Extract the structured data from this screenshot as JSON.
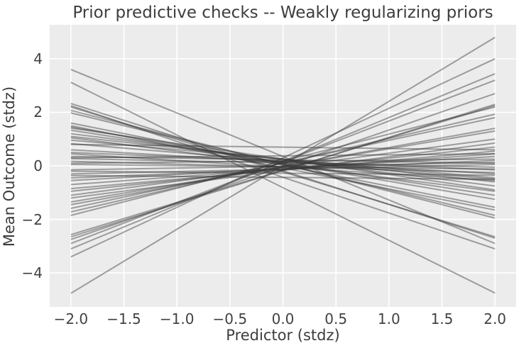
{
  "figure": {
    "title": "Prior predictive checks -- Weakly regularizing priors",
    "xlabel": "Predictor (stdz)",
    "ylabel": "Mean Outcome (stdz)"
  },
  "chart_data": {
    "type": "line",
    "title": "Prior predictive checks -- Weakly regularizing priors",
    "xlabel": "Predictor (stdz)",
    "ylabel": "Mean Outcome (stdz)",
    "xlim": [
      -2.2,
      2.2
    ],
    "ylim": [
      -5.27,
      5.27
    ],
    "grid": true,
    "legend": "none",
    "n_lines": 50,
    "x": [
      -2,
      2
    ],
    "xticks": {
      "values": [
        -2.0,
        -1.5,
        -1.0,
        -0.5,
        0.0,
        0.5,
        1.0,
        1.5,
        2.0
      ],
      "labels": [
        "−2.0",
        "−1.5",
        "−1.0",
        "−0.5",
        "0.0",
        "0.5",
        "1.0",
        "1.5",
        "2.0"
      ]
    },
    "yticks": {
      "values": [
        -4,
        -2,
        0,
        2,
        4
      ],
      "labels": [
        "−4",
        "−2",
        "0",
        "2",
        "4"
      ]
    },
    "series": [
      [
        3.6,
        -2.9
      ],
      [
        3.12,
        -4.75
      ],
      [
        2.33,
        -2.7
      ],
      [
        2.25,
        -3.1
      ],
      [
        2.2,
        -2.65
      ],
      [
        2.07,
        -1.95
      ],
      [
        1.98,
        -1.85
      ],
      [
        1.6,
        -1.55
      ],
      [
        1.5,
        -1.65
      ],
      [
        1.45,
        -1.25
      ],
      [
        1.41,
        -0.9
      ],
      [
        1.33,
        -1.1
      ],
      [
        1.2,
        -0.75
      ],
      [
        1.1,
        -0.6
      ],
      [
        1.05,
        -0.95
      ],
      [
        0.96,
        -0.45
      ],
      [
        0.83,
        -0.5
      ],
      [
        0.6,
        -0.3
      ],
      [
        0.5,
        -0.15
      ],
      [
        0.45,
        -0.55
      ],
      [
        0.35,
        0.1
      ],
      [
        0.27,
        -0.05
      ],
      [
        0.17,
        -0.25
      ],
      [
        0.05,
        -0.12
      ],
      [
        -4.76,
        4.8
      ],
      [
        -3.4,
        4.0
      ],
      [
        -3.1,
        3.44
      ],
      [
        -2.9,
        3.2
      ],
      [
        -2.75,
        2.7
      ],
      [
        -2.65,
        2.3
      ],
      [
        -2.57,
        2.25
      ],
      [
        -1.85,
        2.2
      ],
      [
        -1.72,
        1.93
      ],
      [
        -1.59,
        1.8
      ],
      [
        -1.45,
        1.4
      ],
      [
        -1.35,
        1.3
      ],
      [
        -1.2,
        0.85
      ],
      [
        -1.1,
        1.0
      ],
      [
        -0.95,
        0.7
      ],
      [
        -0.85,
        0.55
      ],
      [
        -0.7,
        0.45
      ],
      [
        -0.55,
        0.35
      ],
      [
        -0.45,
        0.2
      ],
      [
        -0.3,
        0.05
      ],
      [
        -0.15,
        0.12
      ],
      [
        0.8,
        0.6
      ],
      [
        -0.36,
        -0.5
      ],
      [
        0.3,
        0.45
      ],
      [
        -0.2,
        -0.35
      ],
      [
        0.1,
        0.25
      ]
    ],
    "colors": {
      "plot_background": "#ececec",
      "figure_background": "#ffffff",
      "gridline": "#ffffff",
      "line": "#3a3a3a",
      "line_opacity": 0.45,
      "text": "#3d3d3d",
      "tick_text": "#424242"
    },
    "line_width": 2
  }
}
